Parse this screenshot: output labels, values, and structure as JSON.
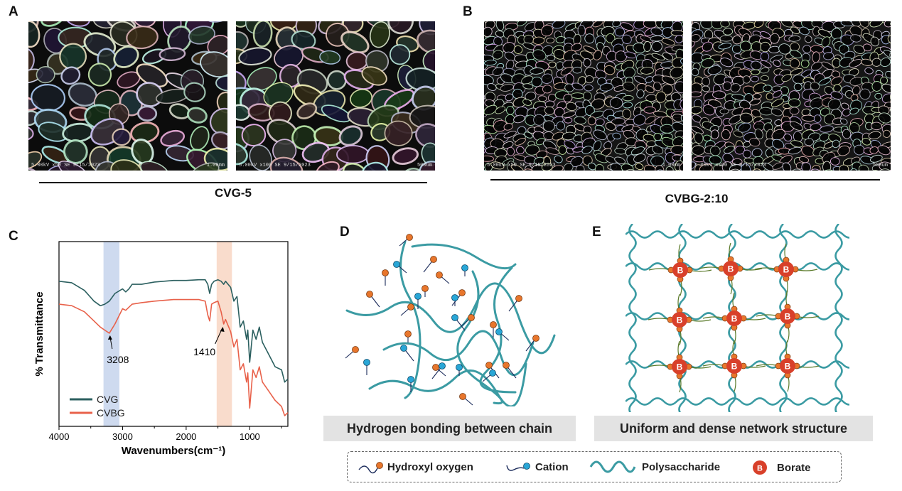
{
  "panels": {
    "A": {
      "letter": "A",
      "group_label": "CVG-5",
      "images": [
        {
          "caption_left": "5.00kV x50 SE  9/15/2023",
          "caption_right": "1.00mm"
        },
        {
          "caption_left": "5.00kV x100 SE  9/15/2023",
          "caption_right": "500um"
        }
      ]
    },
    "B": {
      "letter": "B",
      "group_label": "CVBG-2:10",
      "images": [
        {
          "caption_left": "5.00kV x50 SE  9/15/2023",
          "caption_right": "1.00mm"
        },
        {
          "caption_left": "5.00kV x100 SE  9/15/2023",
          "caption_right": "500um"
        }
      ]
    },
    "C": {
      "letter": "C"
    },
    "D": {
      "letter": "D",
      "caption": "Hydrogen bonding between chain"
    },
    "E": {
      "letter": "E",
      "caption": "Uniform and dense network structure",
      "borate_label": "B"
    }
  },
  "legend": {
    "items": [
      {
        "label": "Hydroxyl oxygen",
        "icon": "hydroxyl-icon"
      },
      {
        "label": "Cation",
        "icon": "cation-icon"
      },
      {
        "label": "Polysaccharide",
        "icon": "polysaccharide-icon"
      },
      {
        "label": "Borate",
        "icon": "borate-icon"
      }
    ],
    "borate_symbol": "B"
  },
  "colors": {
    "cvg": "#2b5f5f",
    "cvbg": "#e8614a",
    "band_oh": "#c5d3ec",
    "band_borate": "#f8d6c3",
    "chain": "#3b9ba3",
    "hydroxyl": "#e8762c",
    "cation": "#29a6d6",
    "borate": "#d8402a"
  },
  "chart_data": {
    "type": "line",
    "xlabel": "Wavenumbers(cm⁻¹)",
    "ylabel": "% Transmittance",
    "xlim": [
      4000,
      400
    ],
    "xticks": [
      "4000",
      "3000",
      "2000",
      "1000"
    ],
    "highlight_bands": [
      {
        "from": 3300,
        "to": 3050
      },
      {
        "from": 1520,
        "to": 1280
      }
    ],
    "annotations": [
      {
        "text": "3208",
        "x": 3208
      },
      {
        "text": "1410",
        "x": 1410
      }
    ],
    "series": [
      {
        "name": "CVG",
        "x": [
          4000,
          3800,
          3600,
          3450,
          3350,
          3280,
          3208,
          3120,
          3000,
          2950,
          2900,
          2850,
          2700,
          2500,
          2200,
          2000,
          1800,
          1700,
          1660,
          1630,
          1600,
          1560,
          1500,
          1450,
          1410,
          1380,
          1300,
          1250,
          1200,
          1150,
          1100,
          1050,
          1030,
          1000,
          950,
          900,
          850,
          800,
          700,
          600,
          500,
          450,
          400
        ],
        "y": [
          0.88,
          0.87,
          0.82,
          0.75,
          0.72,
          0.73,
          0.75,
          0.8,
          0.83,
          0.81,
          0.83,
          0.86,
          0.86,
          0.875,
          0.885,
          0.885,
          0.89,
          0.89,
          0.86,
          0.8,
          0.86,
          0.88,
          0.89,
          0.88,
          0.86,
          0.88,
          0.84,
          0.75,
          0.78,
          0.58,
          0.62,
          0.5,
          0.56,
          0.35,
          0.56,
          0.5,
          0.58,
          0.48,
          0.4,
          0.32,
          0.3,
          0.22,
          0.24
        ]
      },
      {
        "name": "CVBG",
        "x": [
          4000,
          3800,
          3600,
          3450,
          3350,
          3280,
          3208,
          3120,
          3000,
          2950,
          2900,
          2850,
          2700,
          2500,
          2200,
          2000,
          1800,
          1700,
          1660,
          1630,
          1600,
          1560,
          1500,
          1450,
          1410,
          1380,
          1300,
          1250,
          1200,
          1150,
          1100,
          1050,
          1030,
          1000,
          950,
          900,
          850,
          800,
          700,
          600,
          500,
          450,
          400
        ],
        "y": [
          0.73,
          0.72,
          0.68,
          0.62,
          0.58,
          0.56,
          0.54,
          0.6,
          0.7,
          0.69,
          0.71,
          0.73,
          0.74,
          0.75,
          0.76,
          0.76,
          0.76,
          0.75,
          0.66,
          0.62,
          0.73,
          0.74,
          0.75,
          0.68,
          0.6,
          0.63,
          0.55,
          0.45,
          0.5,
          0.3,
          0.34,
          0.22,
          0.28,
          0.05,
          0.3,
          0.25,
          0.32,
          0.22,
          0.16,
          0.1,
          0.06,
          0.0,
          0.02
        ]
      }
    ]
  }
}
